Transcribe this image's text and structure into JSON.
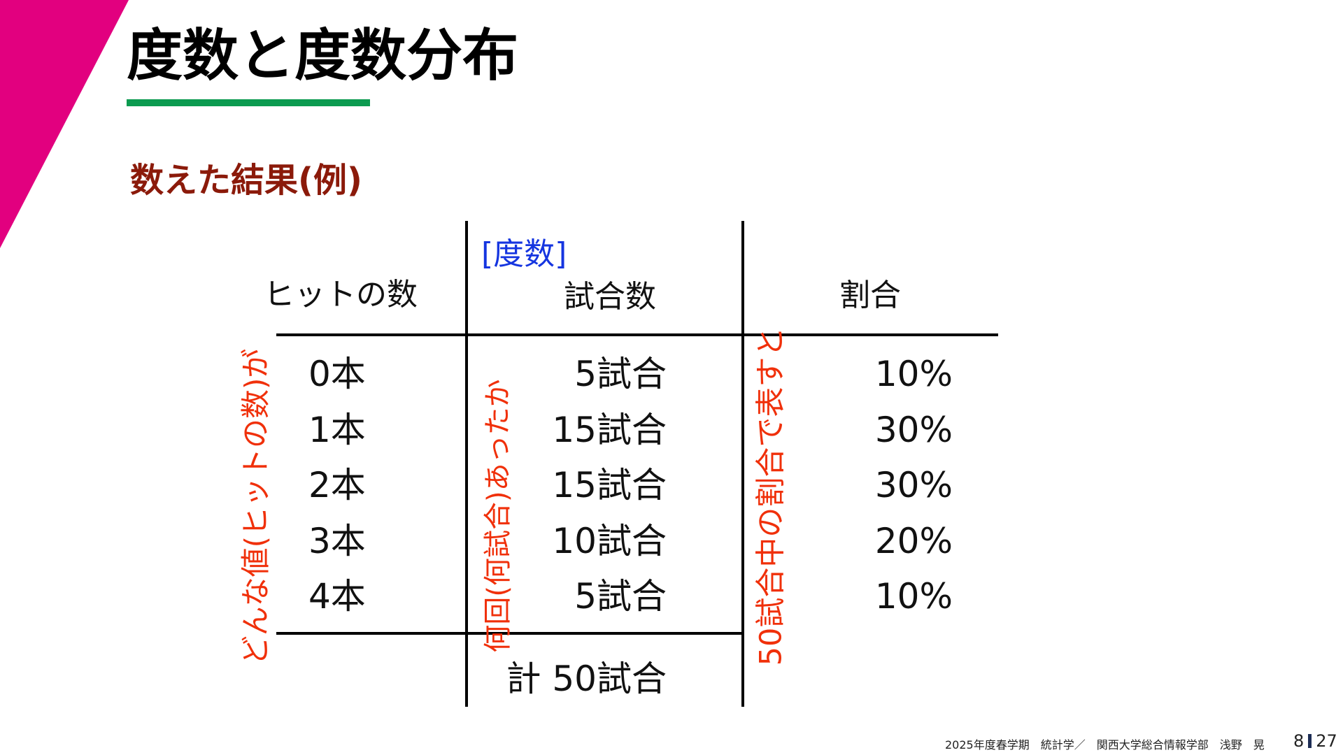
{
  "title": "度数と度数分布",
  "subtitle": "数えた結果(例)",
  "table": {
    "frequency_label": "[度数]",
    "headers": [
      "ヒットの数",
      "試合数",
      "割合"
    ],
    "rows": [
      {
        "value": "0本",
        "count": "5試合",
        "ratio": "10%"
      },
      {
        "value": "1本",
        "count": "15試合",
        "ratio": "30%"
      },
      {
        "value": "2本",
        "count": "15試合",
        "ratio": "30%"
      },
      {
        "value": "3本",
        "count": "10試合",
        "ratio": "20%"
      },
      {
        "value": "4本",
        "count": "5試合",
        "ratio": "10%"
      }
    ],
    "total": "計 50試合"
  },
  "annotations": {
    "value_note": "どんな値(ヒットの数)が",
    "count_note": "何回(何試合)あったか",
    "ratio_note": "50試合中の割合で表すと"
  },
  "footer": {
    "course": "2025年度春学期　統計学／　関西大学総合情報学部　浅野　晃",
    "page": "8",
    "total_pages": "27"
  },
  "colors": {
    "accent": "#E2007F",
    "underline": "#0C9B50",
    "subtitle": "#8B1A0A",
    "annotation": "#F0300A",
    "frequency": "#1535E0"
  }
}
